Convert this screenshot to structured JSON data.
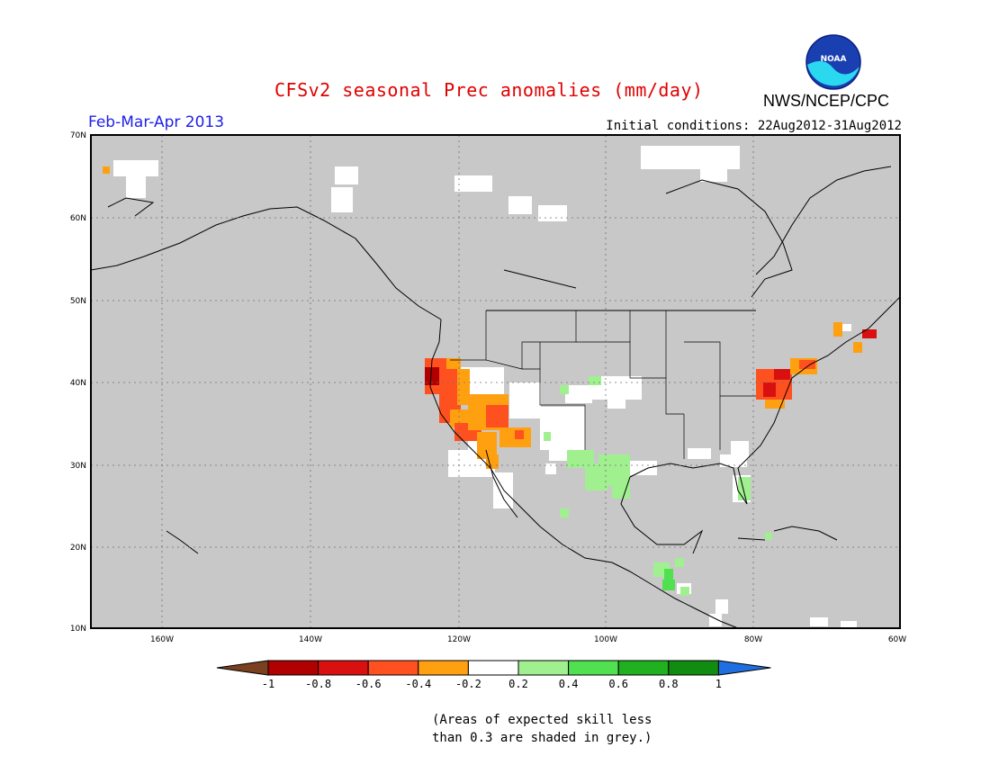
{
  "title": "CFSv2 seasonal Prec anomalies (mm/day)",
  "subtitle": "Feb-Mar-Apr 2013",
  "initial_conditions": "Initial conditions: 22Aug2012-31Aug2012",
  "org": "NWS/NCEP/CPC",
  "logo_text": "NOAA",
  "lat_labels": [
    "70N",
    "60N",
    "50N",
    "40N",
    "30N",
    "20N",
    "10N"
  ],
  "lon_labels": [
    "160W",
    "140W",
    "120W",
    "100W",
    "80W",
    "60W"
  ],
  "colorbar": {
    "labels": [
      "-1",
      "-0.8",
      "-0.6",
      "-0.4",
      "-0.2",
      "0.2",
      "0.4",
      "0.6",
      "0.8",
      "1"
    ],
    "colors": [
      "#7a4020",
      "#b00000",
      "#d81010",
      "#ff5020",
      "#ffa010",
      "#ffffff",
      "#a0f090",
      "#50e050",
      "#20b020",
      "#108c10",
      "#1f6fe0"
    ]
  },
  "note_lines": [
    "(Areas of expected skill less",
    "than 0.3 are shaded in grey.)"
  ],
  "colors": {
    "grey_mask": "#c8c8c8",
    "title": "#e00000",
    "subtitle": "#2020e8"
  }
}
